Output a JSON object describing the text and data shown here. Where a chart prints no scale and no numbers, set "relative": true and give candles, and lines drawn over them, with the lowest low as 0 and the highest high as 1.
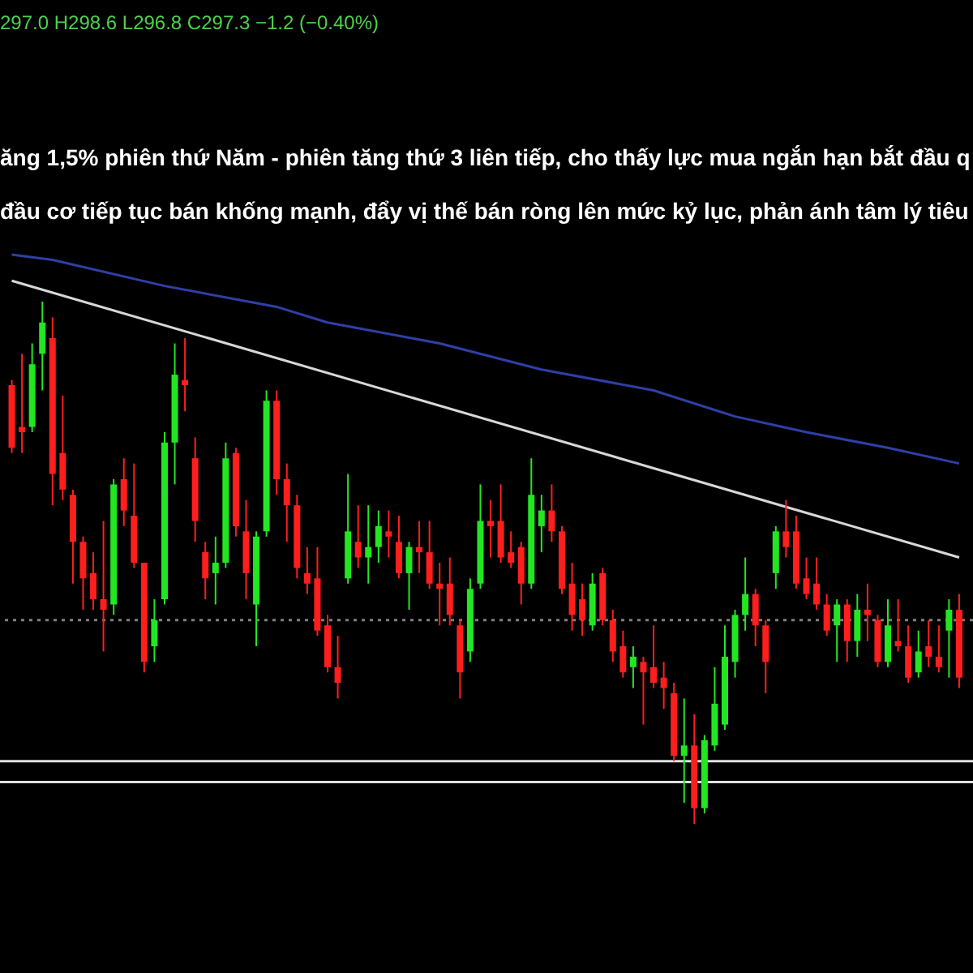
{
  "chart_data": {
    "type": "candlestick",
    "relative": true,
    "annotations": [
      "297.0 H298.6 L296.8 C297.3 −1.2 (−0.40%)",
      "ăng 1,5% phiên thứ Năm - phiên tăng thứ 3 liên tiếp, cho thấy lực mua ngắn hạn bắt đầu q",
      "đầu cơ tiếp tục bán khống mạnh, đẩy vị thế bán ròng lên mức kỷ lục, phản ánh tâm lý tiêu"
    ],
    "categories": [
      null,
      null,
      null,
      null,
      null,
      null,
      null,
      null,
      null,
      null,
      null,
      null,
      null,
      null,
      null,
      null,
      null,
      null,
      null,
      null,
      null,
      null,
      null,
      null,
      null,
      null,
      null,
      null,
      null,
      null,
      null,
      null,
      null,
      null,
      null,
      null,
      null,
      null,
      null,
      null,
      null,
      null,
      null,
      null,
      null,
      null,
      null,
      null,
      null,
      null,
      null,
      null,
      null,
      null,
      null,
      null,
      null,
      null,
      null,
      null,
      null,
      null,
      null,
      null,
      null,
      null,
      null,
      null,
      null,
      null,
      null,
      null,
      null,
      null,
      null,
      null,
      null,
      null,
      null,
      null,
      null,
      null,
      null,
      null,
      null,
      null,
      null,
      null,
      null,
      null,
      null,
      null,
      null,
      null
    ],
    "ohlc": [
      [
        0.84,
        0.85,
        0.71,
        0.72
      ],
      [
        0.76,
        0.9,
        0.71,
        0.75
      ],
      [
        0.76,
        0.92,
        0.75,
        0.88
      ],
      [
        0.9,
        1.0,
        0.83,
        0.96
      ],
      [
        0.93,
        0.97,
        0.61,
        0.67
      ],
      [
        0.71,
        0.82,
        0.62,
        0.64
      ],
      [
        0.63,
        0.64,
        0.46,
        0.54
      ],
      [
        0.54,
        0.55,
        0.41,
        0.47
      ],
      [
        0.48,
        0.52,
        0.41,
        0.43
      ],
      [
        0.43,
        0.58,
        0.33,
        0.41
      ],
      [
        0.42,
        0.66,
        0.4,
        0.65
      ],
      [
        0.66,
        0.7,
        0.57,
        0.6
      ],
      [
        0.59,
        0.69,
        0.49,
        0.5
      ],
      [
        0.5,
        0.5,
        0.29,
        0.31
      ],
      [
        0.34,
        0.43,
        0.31,
        0.39
      ],
      [
        0.43,
        0.75,
        0.42,
        0.73
      ],
      [
        0.73,
        0.92,
        0.65,
        0.86
      ],
      [
        0.85,
        0.93,
        0.79,
        0.84
      ],
      [
        0.7,
        0.74,
        0.54,
        0.58
      ],
      [
        0.52,
        0.54,
        0.43,
        0.47
      ],
      [
        0.48,
        0.55,
        0.42,
        0.5
      ],
      [
        0.5,
        0.73,
        0.49,
        0.7
      ],
      [
        0.71,
        0.72,
        0.55,
        0.57
      ],
      [
        0.56,
        0.62,
        0.43,
        0.48
      ],
      [
        0.42,
        0.56,
        0.34,
        0.55
      ],
      [
        0.56,
        0.83,
        0.55,
        0.81
      ],
      [
        0.81,
        0.83,
        0.63,
        0.66
      ],
      [
        0.66,
        0.69,
        0.54,
        0.61
      ],
      [
        0.61,
        0.63,
        0.47,
        0.49
      ],
      [
        0.48,
        0.53,
        0.44,
        0.46
      ],
      [
        0.47,
        0.53,
        0.36,
        0.37
      ],
      [
        0.38,
        0.4,
        0.29,
        0.3
      ],
      [
        0.3,
        0.36,
        0.24,
        0.27
      ],
      [
        0.47,
        0.67,
        0.46,
        0.56
      ],
      [
        0.54,
        0.61,
        0.49,
        0.51
      ],
      [
        0.51,
        0.61,
        0.46,
        0.53
      ],
      [
        0.53,
        0.6,
        0.5,
        0.57
      ],
      [
        0.56,
        0.6,
        0.51,
        0.55
      ],
      [
        0.54,
        0.59,
        0.47,
        0.48
      ],
      [
        0.48,
        0.54,
        0.41,
        0.53
      ],
      [
        0.53,
        0.58,
        0.48,
        0.52
      ],
      [
        0.52,
        0.58,
        0.45,
        0.46
      ],
      [
        0.46,
        0.5,
        0.38,
        0.45
      ],
      [
        0.46,
        0.51,
        0.38,
        0.4
      ],
      [
        0.38,
        0.39,
        0.24,
        0.29
      ],
      [
        0.33,
        0.47,
        0.31,
        0.45
      ],
      [
        0.46,
        0.65,
        0.45,
        0.58
      ],
      [
        0.58,
        0.62,
        0.51,
        0.57
      ],
      [
        0.58,
        0.65,
        0.5,
        0.51
      ],
      [
        0.52,
        0.56,
        0.49,
        0.5
      ],
      [
        0.53,
        0.54,
        0.42,
        0.46
      ],
      [
        0.46,
        0.7,
        0.45,
        0.63
      ],
      [
        0.57,
        0.63,
        0.52,
        0.6
      ],
      [
        0.6,
        0.65,
        0.54,
        0.56
      ],
      [
        0.56,
        0.57,
        0.44,
        0.45
      ],
      [
        0.46,
        0.5,
        0.37,
        0.4
      ],
      [
        0.43,
        0.46,
        0.36,
        0.39
      ],
      [
        0.38,
        0.48,
        0.37,
        0.46
      ],
      [
        0.48,
        0.49,
        0.38,
        0.39
      ],
      [
        0.39,
        0.41,
        0.31,
        0.33
      ],
      [
        0.34,
        0.37,
        0.28,
        0.29
      ],
      [
        0.3,
        0.34,
        0.26,
        0.32
      ],
      [
        0.31,
        0.32,
        0.19,
        0.29
      ],
      [
        0.3,
        0.38,
        0.26,
        0.27
      ],
      [
        0.28,
        0.31,
        0.22,
        0.26
      ],
      [
        0.25,
        0.27,
        0.12,
        0.13
      ],
      [
        0.13,
        0.24,
        0.04,
        0.15
      ],
      [
        0.15,
        0.21,
        0.0,
        0.03
      ],
      [
        0.03,
        0.17,
        0.02,
        0.16
      ],
      [
        0.15,
        0.3,
        0.14,
        0.23
      ],
      [
        0.19,
        0.38,
        0.18,
        0.32
      ],
      [
        0.31,
        0.41,
        0.28,
        0.4
      ],
      [
        0.4,
        0.51,
        0.37,
        0.44
      ],
      [
        0.44,
        0.45,
        0.34,
        0.38
      ],
      [
        0.38,
        0.39,
        0.25,
        0.31
      ],
      [
        0.48,
        0.57,
        0.45,
        0.56
      ],
      [
        0.56,
        0.62,
        0.51,
        0.53
      ],
      [
        0.56,
        0.59,
        0.45,
        0.46
      ],
      [
        0.47,
        0.51,
        0.43,
        0.44
      ],
      [
        0.46,
        0.51,
        0.41,
        0.42
      ],
      [
        0.42,
        0.44,
        0.36,
        0.37
      ],
      [
        0.38,
        0.43,
        0.31,
        0.42
      ],
      [
        0.42,
        0.43,
        0.31,
        0.35
      ],
      [
        0.35,
        0.44,
        0.32,
        0.41
      ],
      [
        0.41,
        0.46,
        0.35,
        0.4
      ],
      [
        0.39,
        0.4,
        0.3,
        0.31
      ],
      [
        0.31,
        0.43,
        0.3,
        0.38
      ],
      [
        0.35,
        0.43,
        0.33,
        0.34
      ],
      [
        0.34,
        0.38,
        0.27,
        0.28
      ],
      [
        0.29,
        0.37,
        0.28,
        0.33
      ],
      [
        0.34,
        0.39,
        0.3,
        0.32
      ],
      [
        0.32,
        0.38,
        0.29,
        0.3
      ],
      [
        0.37,
        0.43,
        0.28,
        0.41
      ],
      [
        0.41,
        0.44,
        0.26,
        0.28
      ]
    ],
    "colors": [
      "#ff1e1e",
      "#ff1e1e",
      "#22e622",
      "#22e622",
      "#ff1e1e",
      "#ff1e1e",
      "#ff1e1e",
      "#ff1e1e",
      "#ff1e1e",
      "#ff1e1e",
      "#22e622",
      "#ff1e1e",
      "#ff1e1e",
      "#ff1e1e",
      "#22e622",
      "#22e622",
      "#22e622",
      "#ff1e1e",
      "#ff1e1e",
      "#ff1e1e",
      "#22e622",
      "#22e622",
      "#ff1e1e",
      "#ff1e1e",
      "#22e622",
      "#22e622",
      "#ff1e1e",
      "#ff1e1e",
      "#ff1e1e",
      "#ff1e1e",
      "#ff1e1e",
      "#ff1e1e",
      "#ff1e1e",
      "#22e622",
      "#ff1e1e",
      "#22e622",
      "#22e622",
      "#ff1e1e",
      "#ff1e1e",
      "#22e622",
      "#ff1e1e",
      "#ff1e1e",
      "#ff1e1e",
      "#ff1e1e",
      "#ff1e1e",
      "#22e622",
      "#22e622",
      "#ff1e1e",
      "#ff1e1e",
      "#ff1e1e",
      "#ff1e1e",
      "#22e622",
      "#22e622",
      "#ff1e1e",
      "#ff1e1e",
      "#ff1e1e",
      "#ff1e1e",
      "#22e622",
      "#ff1e1e",
      "#ff1e1e",
      "#ff1e1e",
      "#22e622",
      "#ff1e1e",
      "#ff1e1e",
      "#ff1e1e",
      "#ff1e1e",
      "#22e622",
      "#ff1e1e",
      "#22e622",
      "#22e622",
      "#22e622",
      "#22e622",
      "#22e622",
      "#ff1e1e",
      "#ff1e1e",
      "#22e622",
      "#ff1e1e",
      "#ff1e1e",
      "#ff1e1e",
      "#ff1e1e",
      "#ff1e1e",
      "#22e622",
      "#ff1e1e",
      "#22e622",
      "#ff1e1e",
      "#ff1e1e",
      "#22e622",
      "#ff1e1e",
      "#ff1e1e",
      "#22e622",
      "#ff1e1e",
      "#ff1e1e",
      "#22e622",
      "#ff1e1e"
    ],
    "series": [
      {
        "type": "line",
        "color": "#2f3fa8",
        "values": [
          1.09,
          null,
          null,
          null,
          1.08,
          null,
          null,
          null,
          null,
          null,
          null,
          null,
          null,
          null,
          null,
          1.03,
          null,
          null,
          null,
          null,
          null,
          null,
          null,
          null,
          null,
          null,
          0.99,
          null,
          null,
          null,
          null,
          0.96,
          null,
          null,
          null,
          null,
          null,
          null,
          null,
          null,
          null,
          null,
          0.92,
          null,
          null,
          null,
          null,
          null,
          null,
          null,
          null,
          null,
          0.87,
          null,
          null,
          null,
          null,
          null,
          null,
          null,
          null,
          null,
          null,
          0.83,
          null,
          null,
          null,
          null,
          null,
          null,
          null,
          0.78,
          null,
          null,
          null,
          null,
          null,
          null,
          0.75,
          null,
          null,
          null,
          null,
          null,
          null,
          null,
          0.72,
          null,
          null,
          null,
          null,
          null,
          null,
          0.69
        ]
      },
      {
        "type": "line",
        "color": "#d8d8d8",
        "values": [
          1.04,
          null,
          null,
          null,
          null,
          null,
          null,
          null,
          null,
          null,
          null,
          null,
          null,
          null,
          null,
          null,
          null,
          null,
          null,
          null,
          null,
          null,
          null,
          null,
          null,
          null,
          null,
          null,
          null,
          null,
          null,
          null,
          null,
          null,
          null,
          null,
          null,
          null,
          null,
          null,
          null,
          null,
          null,
          null,
          null,
          null,
          null,
          null,
          null,
          null,
          null,
          null,
          null,
          null,
          null,
          null,
          null,
          null,
          null,
          null,
          null,
          null,
          null,
          null,
          null,
          null,
          null,
          null,
          null,
          null,
          null,
          null,
          null,
          null,
          null,
          null,
          null,
          null,
          null,
          null,
          null,
          null,
          null,
          null,
          null,
          null,
          null,
          null,
          null,
          null,
          null,
          null,
          null,
          0.51
        ]
      }
    ],
    "ref_lines": [
      {
        "axis": "y",
        "value": 0.12,
        "color": "#e0e0e0",
        "line_style": "solid"
      },
      {
        "axis": "y",
        "value": 0.08,
        "color": "#e0e0e0",
        "line_style": "solid"
      },
      {
        "axis": "y",
        "value": 0.39,
        "color": "#808080",
        "line_style": "dotted"
      }
    ]
  }
}
